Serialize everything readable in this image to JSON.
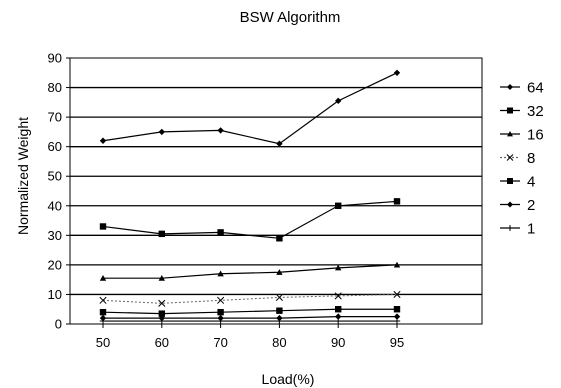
{
  "chart_data": {
    "type": "line",
    "title": "BSW Algorithm",
    "xlabel": "Load(%)",
    "ylabel": "Normalized Weight",
    "categories": [
      "50",
      "60",
      "70",
      "80",
      "90",
      "95"
    ],
    "ylim": [
      0,
      90
    ],
    "yticks": [
      "0",
      "10",
      "20",
      "30",
      "40",
      "50",
      "60",
      "70",
      "80",
      "90"
    ],
    "grid": true,
    "legend_position": "right",
    "series": [
      {
        "name": "64",
        "marker": "diamond",
        "values": [
          62,
          65,
          65.5,
          61,
          75.5,
          85
        ]
      },
      {
        "name": "32",
        "marker": "square",
        "values": [
          33,
          30.5,
          31,
          29,
          40,
          41.5
        ]
      },
      {
        "name": "16",
        "marker": "triangle",
        "values": [
          15.5,
          15.5,
          17,
          17.5,
          19,
          20
        ]
      },
      {
        "name": "8",
        "marker": "x",
        "values": [
          8,
          7,
          8,
          9,
          9.5,
          10
        ]
      },
      {
        "name": "4",
        "marker": "square",
        "values": [
          4,
          3.5,
          4,
          4.5,
          5,
          5
        ]
      },
      {
        "name": "2",
        "marker": "diamond",
        "values": [
          2,
          2,
          2,
          2,
          2.5,
          2.5
        ]
      },
      {
        "name": "1",
        "marker": "plus",
        "values": [
          1,
          1,
          1,
          1,
          1,
          1
        ]
      }
    ]
  }
}
